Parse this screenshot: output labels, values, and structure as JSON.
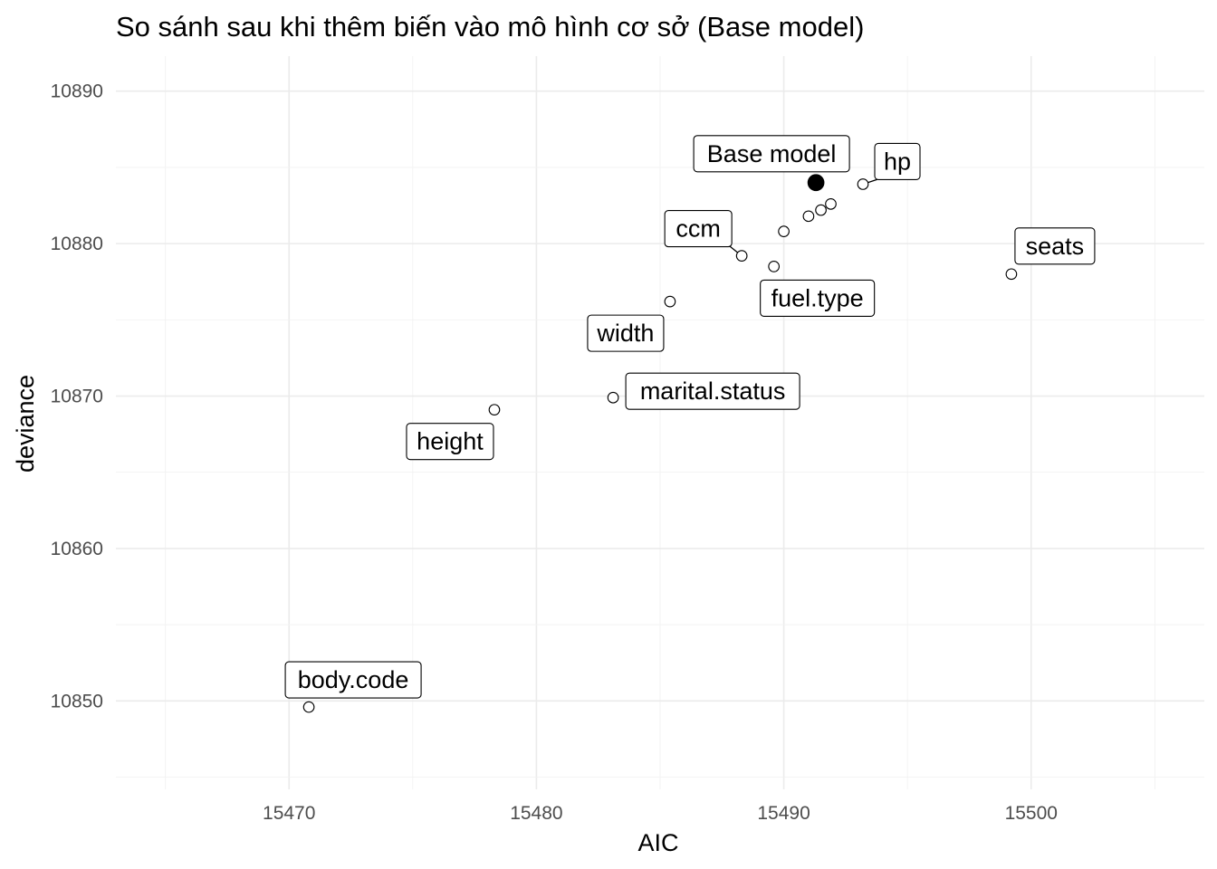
{
  "chart_data": {
    "type": "scatter",
    "title": "So sánh sau khi thêm biến vào mô hình cơ sở (Base model)",
    "xlabel": "AIC",
    "ylabel": "deviance",
    "xlim": [
      15463,
      15507
    ],
    "ylim": [
      10844.2,
      10892.3
    ],
    "x_ticks": [
      15470,
      15480,
      15490,
      15500
    ],
    "y_ticks": [
      10850,
      10860,
      10870,
      10880,
      10890
    ],
    "x_tick_labels": [
      "15470",
      "15480",
      "15490",
      "15500"
    ],
    "y_tick_labels": [
      "10850",
      "10860",
      "10870",
      "10880",
      "10890"
    ],
    "grid": true,
    "legend": "none",
    "base_point": {
      "label": "Base model",
      "x": 15491.3,
      "y": 10884.0
    },
    "points": [
      {
        "label": "hp",
        "x": 15493.2,
        "y": 10883.9
      },
      {
        "label": "",
        "x": 15491.9,
        "y": 10882.6
      },
      {
        "label": "",
        "x": 15491.5,
        "y": 10882.2
      },
      {
        "label": "",
        "x": 15491.0,
        "y": 10881.8
      },
      {
        "label": "",
        "x": 15490.0,
        "y": 10880.8
      },
      {
        "label": "ccm",
        "x": 15488.3,
        "y": 10879.2
      },
      {
        "label": "fuel.type",
        "x": 15489.6,
        "y": 10878.5
      },
      {
        "label": "seats",
        "x": 15499.2,
        "y": 10878.0
      },
      {
        "label": "width",
        "x": 15485.4,
        "y": 10876.2
      },
      {
        "label": "marital.status",
        "x": 15483.1,
        "y": 10869.9
      },
      {
        "label": "height",
        "x": 15478.3,
        "y": 10869.1
      },
      {
        "label": "body.code",
        "x": 15470.8,
        "y": 10849.6
      }
    ]
  }
}
